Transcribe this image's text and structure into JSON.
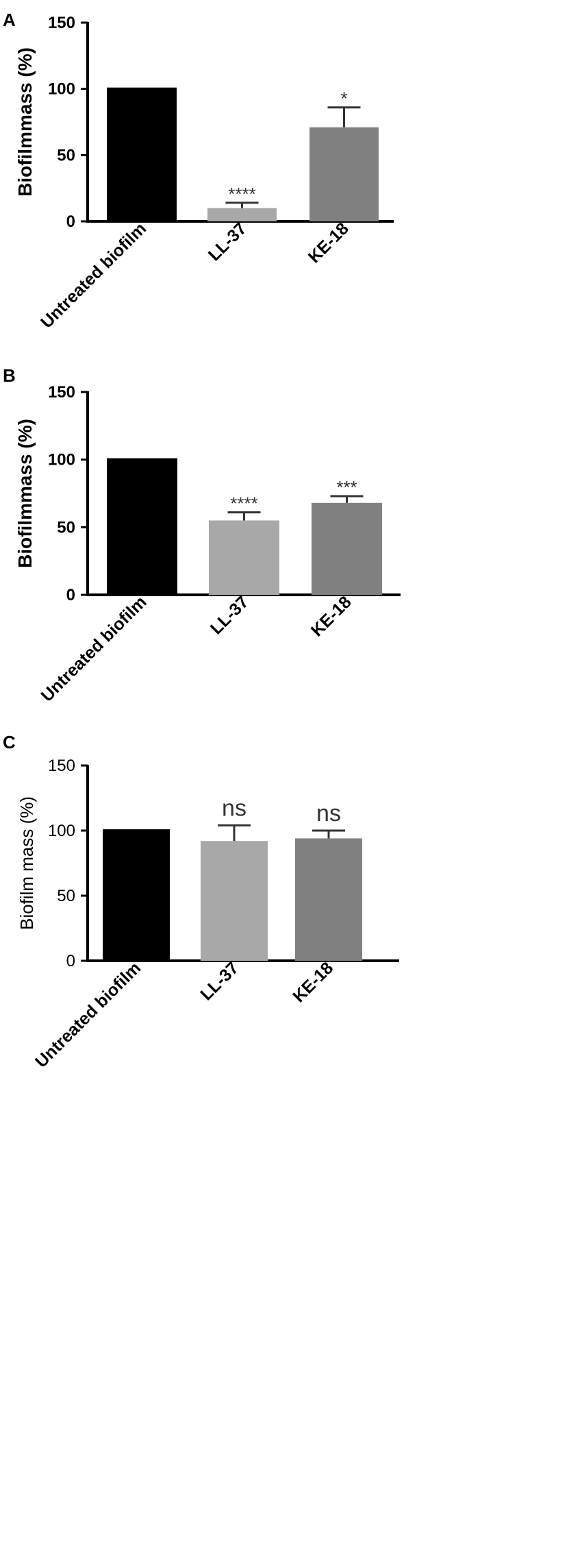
{
  "chart_data": [
    {
      "panel": "A",
      "type": "bar",
      "title": "",
      "xlabel": "",
      "ylabel": "Biofilmmass (%)",
      "ylim": [
        0,
        150
      ],
      "yticks": [
        "0",
        "50",
        "100",
        "150"
      ],
      "categories": [
        "Untreated biofilm",
        "LL-37",
        "KE-18"
      ],
      "values": [
        101,
        10,
        71
      ],
      "errors": [
        0,
        4,
        15
      ],
      "significance": [
        "",
        "****",
        "*"
      ],
      "colors": [
        "#000000",
        "#a8a8a8",
        "#808080"
      ]
    },
    {
      "panel": "B",
      "type": "bar",
      "title": "",
      "xlabel": "",
      "ylabel": "Biofilmmass (%)",
      "ylim": [
        0,
        150
      ],
      "yticks": [
        "0",
        "50",
        "100",
        "150"
      ],
      "categories": [
        "Untreated biofilm",
        "LL-37",
        "KE-18"
      ],
      "values": [
        101,
        55,
        68
      ],
      "errors": [
        0,
        6,
        5
      ],
      "significance": [
        "",
        "****",
        "***"
      ],
      "colors": [
        "#000000",
        "#a8a8a8",
        "#808080"
      ]
    },
    {
      "panel": "C",
      "type": "bar",
      "title": "",
      "xlabel": "",
      "ylabel": "Biofilm mass (%)",
      "ylim": [
        0,
        150
      ],
      "yticks": [
        "0",
        "50",
        "100",
        "150"
      ],
      "categories": [
        "Untreated biofilm",
        "LL-37",
        "KE-18"
      ],
      "values": [
        101,
        92,
        94
      ],
      "errors": [
        0,
        12,
        6
      ],
      "significance": [
        "",
        "ns",
        "ns"
      ],
      "colors": [
        "#000000",
        "#a8a8a8",
        "#808080"
      ]
    }
  ]
}
